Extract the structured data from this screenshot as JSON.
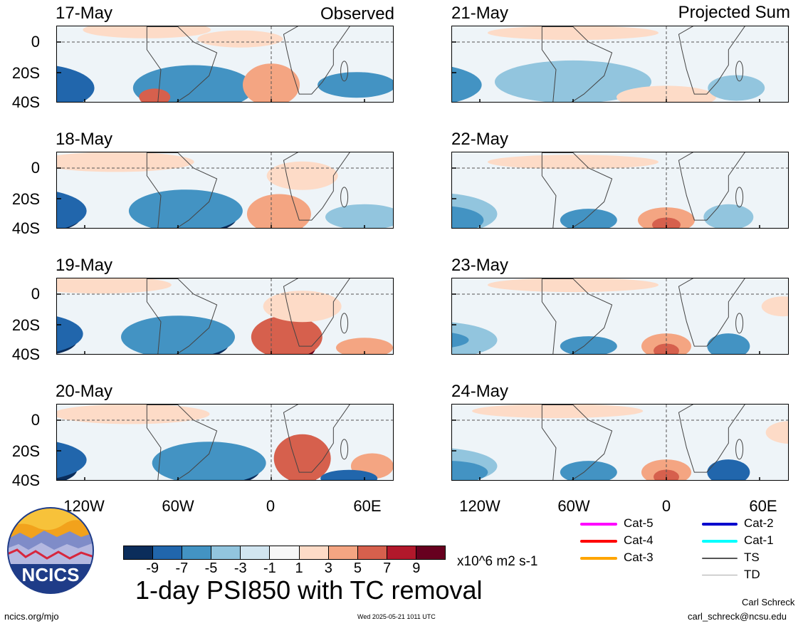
{
  "header": {
    "left_tag": "Observed",
    "right_tag": "Projected Sum"
  },
  "panels": {
    "left": [
      {
        "date": "17-May"
      },
      {
        "date": "18-May"
      },
      {
        "date": "19-May"
      },
      {
        "date": "20-May"
      }
    ],
    "right": [
      {
        "date": "21-May"
      },
      {
        "date": "22-May"
      },
      {
        "date": "23-May"
      },
      {
        "date": "24-May"
      }
    ]
  },
  "axes": {
    "y_ticks": [
      "0",
      "20S",
      "40S"
    ],
    "x_ticks": [
      "120W",
      "60W",
      "0",
      "60E"
    ]
  },
  "colorbar": {
    "tick_labels": [
      "-9",
      "-7",
      "-5",
      "-3",
      "-1",
      "1",
      "3",
      "5",
      "7",
      "9"
    ],
    "units": "x10^6 m2 s-1",
    "colors": [
      "#0b2d5b",
      "#2166ac",
      "#4393c3",
      "#92c5de",
      "#d1e5f0",
      "#f7f7f7",
      "#fddbc7",
      "#f4a582",
      "#d6604d",
      "#b2182b",
      "#67001f"
    ]
  },
  "legend": {
    "items": [
      {
        "label": "Cat-5",
        "color": "#ff00ff"
      },
      {
        "label": "Cat-4",
        "color": "#ff0000"
      },
      {
        "label": "Cat-3",
        "color": "#ffa500"
      },
      {
        "label": "Cat-2",
        "color": "#0000cd"
      },
      {
        "label": "Cat-1",
        "color": "#00ffff"
      },
      {
        "label": "TS",
        "color": "#555555"
      },
      {
        "label": "TD",
        "color": "#aaaaaa"
      }
    ]
  },
  "title": "1-day PSI850 with TC removal",
  "logo": {
    "text": "NCICS"
  },
  "footer": {
    "site": "ncics.org/mjo",
    "timestamp": "Wed 2025-05-21 1011 UTC",
    "author": "Carl Schreck",
    "email": "carl_schreck@ncsu.edu"
  }
}
